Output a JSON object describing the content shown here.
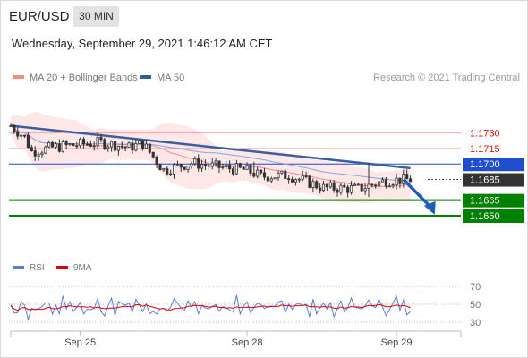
{
  "header": {
    "symbol": "EUR/USD",
    "timeframe": "30 MIN",
    "datetime": "Wednesday, September 29, 2021 1:46:12 AM CET"
  },
  "legend": [
    {
      "label": "MA 20 + Bollinger Bands",
      "color": "#f28b82"
    },
    {
      "label": "MA 50",
      "color": "#2f5d9e"
    }
  ],
  "copyright": "Research © 2021 Trading Central",
  "colors": {
    "up": "#ffffff",
    "down": "#333333",
    "band_fill": "#fde3e3",
    "trend": "#3a5fa0",
    "support": "#008000",
    "resistance": "#f4a5a5",
    "pivot": "#1f4fcf",
    "arrow": "#1a5fb4"
  },
  "chart_data": [
    {
      "type": "candlestick",
      "ylim": [
        1.1637,
        1.1753
      ],
      "x_range": [
        0,
        120
      ],
      "x_ticks": [
        {
          "x": 20,
          "label": "Sep 25"
        },
        {
          "x": 68,
          "label": "Sep 28"
        },
        {
          "x": 111,
          "label": "Sep 29"
        }
      ],
      "y_levels": [
        {
          "value": 1.173,
          "label": "1.1730",
          "kind": "resistance"
        },
        {
          "value": 1.1715,
          "label": "1.1715",
          "kind": "resistance"
        },
        {
          "value": 1.17,
          "label": "1.1700",
          "kind": "pivot"
        },
        {
          "value": 1.1685,
          "label": "1.1685",
          "kind": "current"
        },
        {
          "value": 1.1665,
          "label": "1.1665",
          "kind": "support"
        },
        {
          "value": 1.165,
          "label": "1.1650",
          "kind": "support"
        }
      ],
      "trendline": [
        [
          0,
          1.1737
        ],
        [
          115,
          1.1696
        ]
      ],
      "forecast_arrow": [
        [
          113,
          1.1685
        ],
        [
          122,
          1.1651
        ]
      ]
    },
    {
      "type": "line",
      "series": [
        {
          "name": "RSI",
          "color": "#5b7fd6"
        },
        {
          "name": "9MA",
          "color": "#e00000"
        }
      ],
      "ylim": [
        20,
        80
      ],
      "levels": [
        70,
        50,
        30
      ]
    }
  ]
}
